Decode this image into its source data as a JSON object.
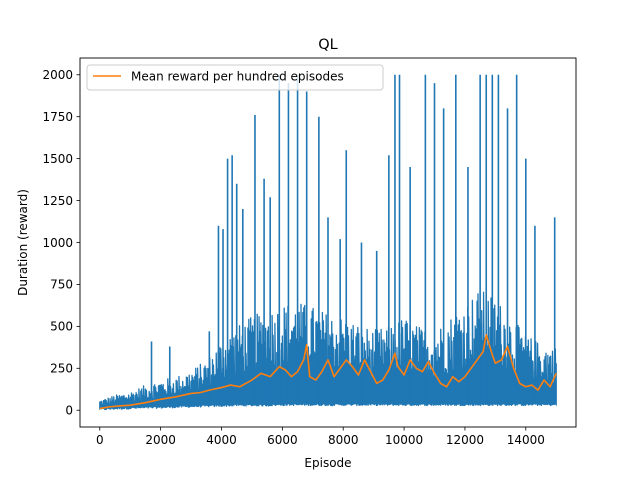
{
  "chart_data": {
    "type": "line",
    "title": "QL",
    "xlabel": "Episode",
    "ylabel": "Duration (reward)",
    "xlim": [
      -650,
      15650
    ],
    "ylim": [
      -100,
      2100
    ],
    "xticks": [
      0,
      2000,
      4000,
      6000,
      8000,
      10000,
      12000,
      14000
    ],
    "yticks": [
      0,
      250,
      500,
      750,
      1000,
      1250,
      1500,
      1750,
      2000
    ],
    "grid": false,
    "legend": {
      "placement": "top-left",
      "entries": [
        "Mean reward per hundred episodes"
      ]
    },
    "episodes": 15000,
    "series": [
      {
        "color": "#1f77b4",
        "description": "per-episode duration (dense, noisy)",
        "envelope": {
          "x": [
            0,
            500,
            1000,
            1500,
            2000,
            2500,
            3000,
            3500,
            4000,
            4500,
            5000,
            5500,
            6000,
            6500,
            7000,
            7500,
            8000,
            8500,
            9000,
            9500,
            10000,
            10500,
            11000,
            11500,
            12000,
            12500,
            13000,
            13500,
            14000,
            14500,
            15000
          ],
          "low": [
            0,
            5,
            8,
            10,
            12,
            15,
            18,
            20,
            22,
            25,
            25,
            25,
            28,
            28,
            28,
            28,
            28,
            28,
            28,
            28,
            28,
            28,
            28,
            28,
            28,
            28,
            28,
            28,
            28,
            28,
            28
          ],
          "typical_high": [
            60,
            90,
            110,
            150,
            180,
            200,
            240,
            300,
            420,
            500,
            560,
            600,
            640,
            650,
            620,
            580,
            560,
            520,
            480,
            500,
            560,
            500,
            480,
            560,
            650,
            720,
            680,
            560,
            450,
            400,
            380
          ]
        },
        "spikes": [
          {
            "x": 1700,
            "y": 410
          },
          {
            "x": 2300,
            "y": 380
          },
          {
            "x": 3600,
            "y": 470
          },
          {
            "x": 3900,
            "y": 1100
          },
          {
            "x": 4050,
            "y": 1080
          },
          {
            "x": 4200,
            "y": 1500
          },
          {
            "x": 4350,
            "y": 1520
          },
          {
            "x": 4500,
            "y": 1350
          },
          {
            "x": 4700,
            "y": 1200
          },
          {
            "x": 5100,
            "y": 1760
          },
          {
            "x": 5400,
            "y": 1380
          },
          {
            "x": 5600,
            "y": 1270
          },
          {
            "x": 5900,
            "y": 2000
          },
          {
            "x": 6200,
            "y": 1950
          },
          {
            "x": 6500,
            "y": 2000
          },
          {
            "x": 6800,
            "y": 1900
          },
          {
            "x": 7200,
            "y": 1750
          },
          {
            "x": 7500,
            "y": 1150
          },
          {
            "x": 7900,
            "y": 1020
          },
          {
            "x": 8100,
            "y": 1550
          },
          {
            "x": 8600,
            "y": 1000
          },
          {
            "x": 9100,
            "y": 950
          },
          {
            "x": 9500,
            "y": 1520
          },
          {
            "x": 9700,
            "y": 2000
          },
          {
            "x": 9850,
            "y": 2000
          },
          {
            "x": 10200,
            "y": 1450
          },
          {
            "x": 10700,
            "y": 2000
          },
          {
            "x": 11000,
            "y": 1950
          },
          {
            "x": 11300,
            "y": 1800
          },
          {
            "x": 11700,
            "y": 2000
          },
          {
            "x": 12100,
            "y": 1450
          },
          {
            "x": 12500,
            "y": 2000
          },
          {
            "x": 12700,
            "y": 2000
          },
          {
            "x": 12900,
            "y": 2000
          },
          {
            "x": 13100,
            "y": 2000
          },
          {
            "x": 13400,
            "y": 1800
          },
          {
            "x": 13700,
            "y": 2000
          },
          {
            "x": 14000,
            "y": 1500
          },
          {
            "x": 14300,
            "y": 1100
          },
          {
            "x": 14950,
            "y": 1150
          }
        ]
      },
      {
        "name": "Mean reward per hundred episodes",
        "color": "#ff7f0e",
        "x": [
          0,
          300,
          600,
          1000,
          1500,
          2000,
          2500,
          3000,
          3300,
          3600,
          4000,
          4300,
          4600,
          5000,
          5300,
          5600,
          5900,
          6100,
          6300,
          6500,
          6700,
          6800,
          6900,
          7100,
          7300,
          7500,
          7700,
          7900,
          8100,
          8300,
          8500,
          8700,
          8900,
          9100,
          9300,
          9500,
          9700,
          9800,
          10000,
          10200,
          10400,
          10600,
          10800,
          11000,
          11200,
          11400,
          11600,
          11800,
          12000,
          12200,
          12400,
          12600,
          12700,
          12800,
          12900,
          13000,
          13200,
          13400,
          13600,
          13800,
          14000,
          14200,
          14400,
          14600,
          14800,
          15000
        ],
        "y": [
          10,
          20,
          25,
          30,
          45,
          65,
          80,
          100,
          105,
          120,
          135,
          150,
          140,
          180,
          220,
          200,
          260,
          240,
          200,
          230,
          300,
          390,
          200,
          180,
          230,
          300,
          200,
          250,
          300,
          260,
          210,
          300,
          230,
          160,
          180,
          240,
          340,
          260,
          210,
          300,
          250,
          230,
          290,
          220,
          160,
          140,
          200,
          170,
          200,
          250,
          300,
          350,
          450,
          390,
          330,
          280,
          300,
          380,
          250,
          160,
          140,
          150,
          120,
          180,
          140,
          220
        ]
      }
    ]
  }
}
